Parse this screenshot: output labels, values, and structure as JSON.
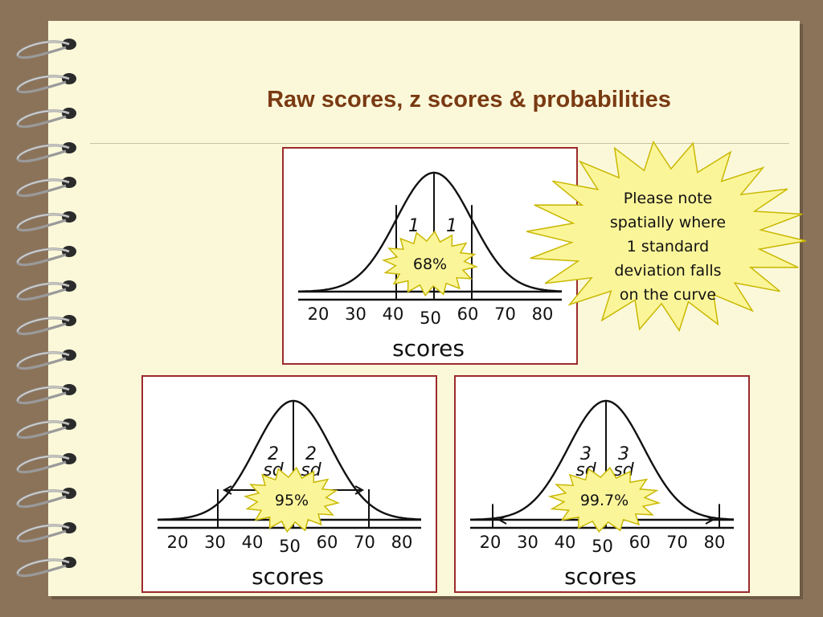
{
  "slide": {
    "title": "Raw scores, z scores & probabilities"
  },
  "note": {
    "lines": [
      "Please note",
      "spatially where",
      "1 standard",
      "deviation falls",
      "on the curve"
    ]
  },
  "panels": [
    {
      "id": "one-sd",
      "percent_label": "68%",
      "sd_marks": [
        "1",
        "1"
      ],
      "sd_unit": "",
      "axis_title": "scores",
      "ticks": [
        "20",
        "30",
        "40",
        "50",
        "60",
        "70",
        "80"
      ]
    },
    {
      "id": "two-sd",
      "percent_label": "95%",
      "sd_marks": [
        "2",
        "2"
      ],
      "sd_unit": "sd",
      "axis_title": "scores",
      "ticks": [
        "20",
        "30",
        "40",
        "50",
        "60",
        "70",
        "80"
      ]
    },
    {
      "id": "three-sd",
      "percent_label": "99.7%",
      "sd_marks": [
        "3",
        "3"
      ],
      "sd_unit": "sd",
      "axis_title": "scores",
      "ticks": [
        "20",
        "30",
        "40",
        "50",
        "60",
        "70",
        "80"
      ]
    }
  ],
  "colors": {
    "title": "#7a3a12",
    "burst_fill": "#fbf59a",
    "burst_stroke": "#c9b800",
    "panel_border": "#9b2b2b",
    "frame": "#8b735a",
    "paper": "#fbf8da"
  }
}
